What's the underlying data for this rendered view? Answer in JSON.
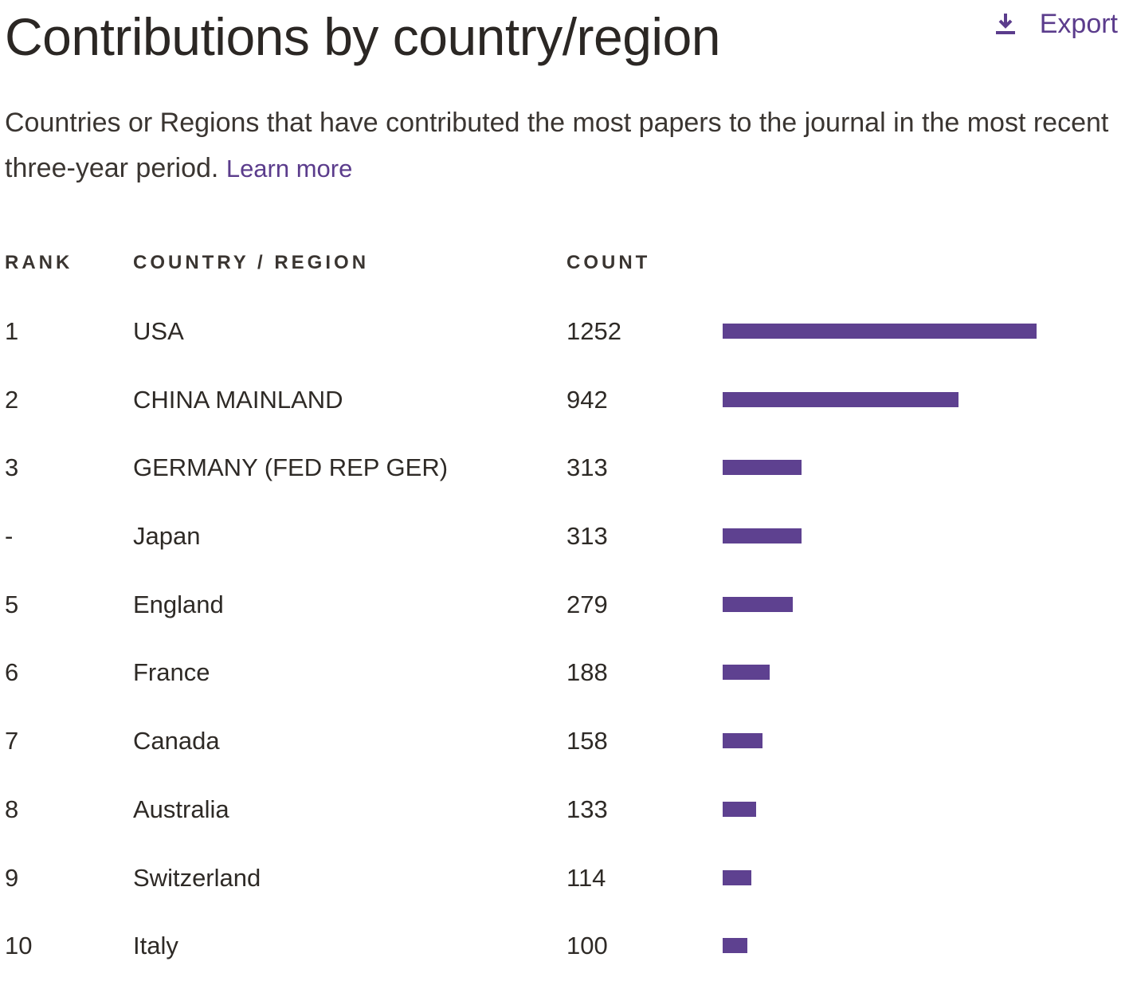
{
  "title": "Contributions by country/region",
  "export_label": "Export",
  "description": "Countries or Regions that have contributed the most papers to the journal in the most recent three-year period.",
  "learn_more": "Learn more",
  "columns": {
    "rank": "RANK",
    "country": "COUNTRY / REGION",
    "count": "COUNT"
  },
  "colors": {
    "accent": "#5b3c8c",
    "bar": "#5e4190",
    "text": "#2e2a26"
  },
  "icons": {
    "export": "download-icon"
  },
  "rows": [
    {
      "rank": "1",
      "country": "USA",
      "count": "1252",
      "value": 1252
    },
    {
      "rank": "2",
      "country": "CHINA MAINLAND",
      "count": "942",
      "value": 942
    },
    {
      "rank": "3",
      "country": "GERMANY (FED REP GER)",
      "count": "313",
      "value": 313
    },
    {
      "rank": "-",
      "country": "Japan",
      "count": "313",
      "value": 313
    },
    {
      "rank": "5",
      "country": "England",
      "count": "279",
      "value": 279
    },
    {
      "rank": "6",
      "country": "France",
      "count": "188",
      "value": 188
    },
    {
      "rank": "7",
      "country": "Canada",
      "count": "158",
      "value": 158
    },
    {
      "rank": "8",
      "country": "Australia",
      "count": "133",
      "value": 133
    },
    {
      "rank": "9",
      "country": "Switzerland",
      "count": "114",
      "value": 114
    },
    {
      "rank": "10",
      "country": "Italy",
      "count": "100",
      "value": 100
    }
  ]
}
